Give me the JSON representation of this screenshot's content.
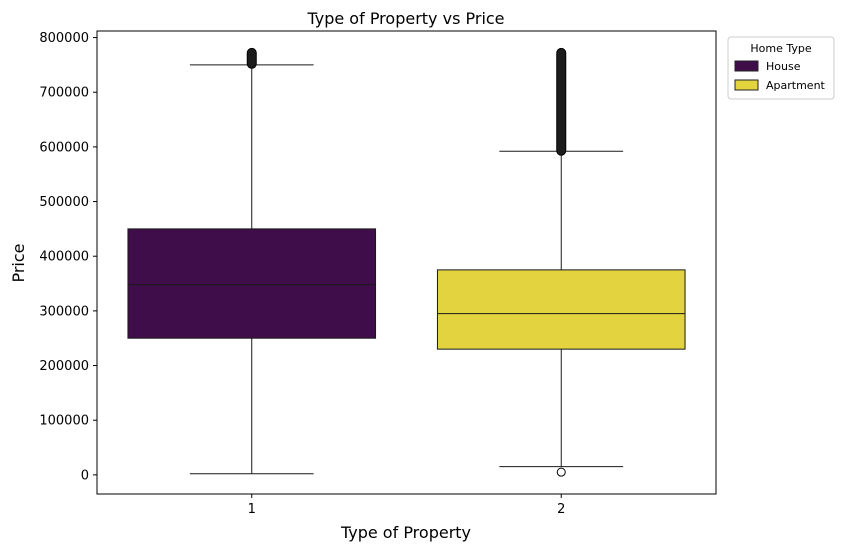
{
  "chart_data": {
    "type": "box",
    "title": "Type of Property vs Price",
    "xlabel": "Type of Property",
    "ylabel": "Price",
    "categories": [
      "1",
      "2"
    ],
    "ylim": [
      -35000,
      812000
    ],
    "yticks": [
      0,
      100000,
      200000,
      300000,
      400000,
      500000,
      600000,
      700000,
      800000
    ],
    "ytick_labels": [
      "0",
      "100000",
      "200000",
      "300000",
      "400000",
      "500000",
      "600000",
      "700000",
      "800000"
    ],
    "grid": false,
    "legend": {
      "title": "Home Type",
      "placement": "outside-top-right",
      "entries": [
        {
          "label": "House",
          "color": "#3f0d4a"
        },
        {
          "label": "Apartment",
          "color": "#e3d43f"
        }
      ]
    },
    "boxes": [
      {
        "category": "1",
        "series": "House",
        "color": "#3f0d4a",
        "whisker_low": 2000,
        "q1": 250000,
        "median": 348000,
        "q3": 450000,
        "whisker_high": 750000,
        "outliers_range": [
          752000,
          772000
        ],
        "outliers": []
      },
      {
        "category": "2",
        "series": "Apartment",
        "color": "#e3d43f",
        "whisker_low": 15000,
        "q1": 230000,
        "median": 295000,
        "q3": 375000,
        "whisker_high": 592000,
        "outliers_range": [
          593000,
          772000
        ],
        "outliers": [
          5000
        ]
      }
    ]
  }
}
